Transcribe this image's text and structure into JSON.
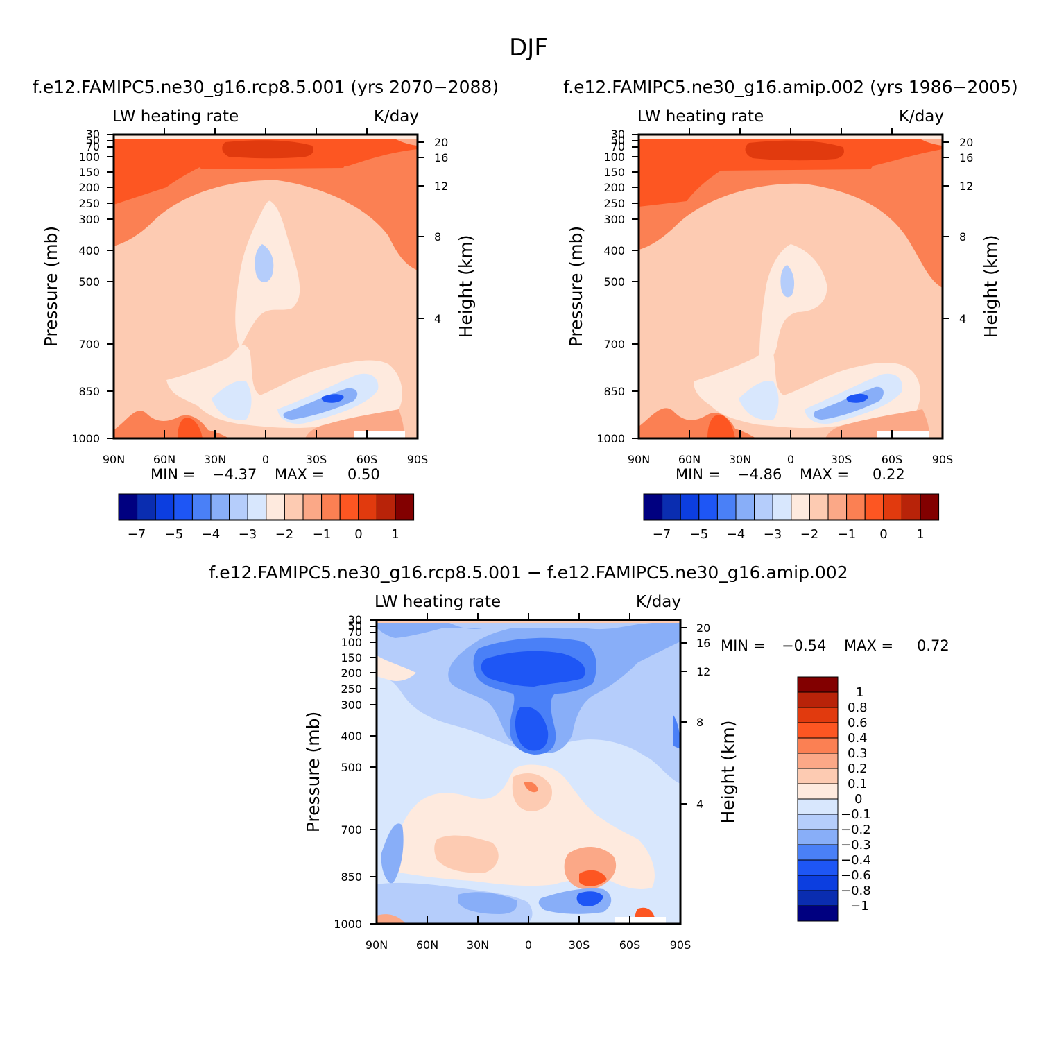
{
  "figure_title": "DJF",
  "colors": {
    "abs_scale": [
      "#000080",
      "#0a2db0",
      "#0c3ee0",
      "#1e56f5",
      "#4a80f7",
      "#88aef8",
      "#b5cdfb",
      "#d8e7fd",
      "#feeade",
      "#fdcbb2",
      "#fba887",
      "#fb8053",
      "#fd5622",
      "#e13a0e",
      "#b82309",
      "#820000"
    ],
    "diff_scale": [
      "#000080",
      "#0a2db0",
      "#0c3ee0",
      "#1e56f5",
      "#4a80f7",
      "#88aef8",
      "#b5cdfb",
      "#d8e7fd",
      "#feeade",
      "#fdcbb2",
      "#fba887",
      "#fb8053",
      "#fd5622",
      "#e13a0e",
      "#b82309",
      "#820000"
    ]
  },
  "panels": [
    {
      "id": "rcp",
      "title": "f.e12.FAMIPC5.ne30_g16.rcp8.5.001 (yrs 2070-2088)",
      "left_label": "LW heating rate",
      "right_label": "K/day",
      "ylabel": "Pressure (mb)",
      "ylabel_right": "Height (km)",
      "min_label": "MIN =",
      "min_value": "-4.37",
      "max_label": "MAX =",
      "max_value": "0.50"
    },
    {
      "id": "amip",
      "title": "f.e12.FAMIPC5.ne30_g16.amip.002 (yrs 1986-2005)",
      "left_label": "LW heating rate",
      "right_label": "K/day",
      "ylabel": "Pressure (mb)",
      "ylabel_right": "Height (km)",
      "min_label": "MIN =",
      "min_value": "-4.86",
      "max_label": "MAX =",
      "max_value": "0.22"
    },
    {
      "id": "diff",
      "title": "f.e12.FAMIPC5.ne30_g16.rcp8.5.001 - f.e12.FAMIPC5.ne30_g16.amip.002",
      "left_label": "LW heating rate",
      "right_label": "K/day",
      "ylabel": "Pressure (mb)",
      "ylabel_right": "Height (km)",
      "min_label": "MIN =",
      "min_value": "-0.54",
      "max_label": "MAX =",
      "max_value": "0.72"
    }
  ],
  "chart_data": [
    {
      "type": "heatmap",
      "title": "f.e12.FAMIPC5.ne30_g16.rcp8.5.001 (yrs 2070-2088)",
      "variable": "LW heating rate",
      "units": "K/day",
      "xlabel": "",
      "ylabel": "Pressure (mb)",
      "ylabel_right": "Height (km)",
      "x_ticks": [
        "90N",
        "60N",
        "30N",
        "0",
        "30S",
        "60S",
        "90S"
      ],
      "y_ticks": [
        "30",
        "50",
        "70",
        "100",
        "150",
        "200",
        "250",
        "300",
        "400",
        "500",
        "700",
        "850",
        "1000"
      ],
      "y_ticks_right": [
        "20",
        "16",
        "12",
        "8",
        "4"
      ],
      "colorbar_labels": [
        "-7",
        "-5",
        "-4",
        "-3",
        "-2",
        "-1",
        "0",
        "1"
      ],
      "min": -4.37,
      "max": 0.5,
      "ylim": [
        1000,
        30
      ]
    },
    {
      "type": "heatmap",
      "title": "f.e12.FAMIPC5.ne30_g16.amip.002 (yrs 1986-2005)",
      "variable": "LW heating rate",
      "units": "K/day",
      "xlabel": "",
      "ylabel": "Pressure (mb)",
      "ylabel_right": "Height (km)",
      "x_ticks": [
        "90N",
        "60N",
        "30N",
        "0",
        "30S",
        "60S",
        "90S"
      ],
      "y_ticks": [
        "30",
        "50",
        "70",
        "100",
        "150",
        "200",
        "250",
        "300",
        "400",
        "500",
        "700",
        "850",
        "1000"
      ],
      "y_ticks_right": [
        "20",
        "16",
        "12",
        "8",
        "4"
      ],
      "colorbar_labels": [
        "-7",
        "-5",
        "-4",
        "-3",
        "-2",
        "-1",
        "0",
        "1"
      ],
      "min": -4.86,
      "max": 0.22,
      "ylim": [
        1000,
        30
      ]
    },
    {
      "type": "heatmap",
      "title": "f.e12.FAMIPC5.ne30_g16.rcp8.5.001 - f.e12.FAMIPC5.ne30_g16.amip.002",
      "variable": "LW heating rate",
      "units": "K/day",
      "xlabel": "",
      "ylabel": "Pressure (mb)",
      "ylabel_right": "Height (km)",
      "x_ticks": [
        "90N",
        "60N",
        "30N",
        "0",
        "30S",
        "60S",
        "90S"
      ],
      "y_ticks": [
        "30",
        "50",
        "70",
        "100",
        "150",
        "200",
        "250",
        "300",
        "400",
        "500",
        "700",
        "850",
        "1000"
      ],
      "y_ticks_right": [
        "20",
        "16",
        "12",
        "8",
        "4"
      ],
      "colorbar_labels": [
        "1",
        "0.8",
        "0.6",
        "0.4",
        "0.3",
        "0.2",
        "0.1",
        "0",
        "-0.1",
        "-0.2",
        "-0.3",
        "-0.4",
        "-0.6",
        "-0.8",
        "-1"
      ],
      "min": -0.54,
      "max": 0.72,
      "ylim": [
        1000,
        30
      ]
    }
  ]
}
